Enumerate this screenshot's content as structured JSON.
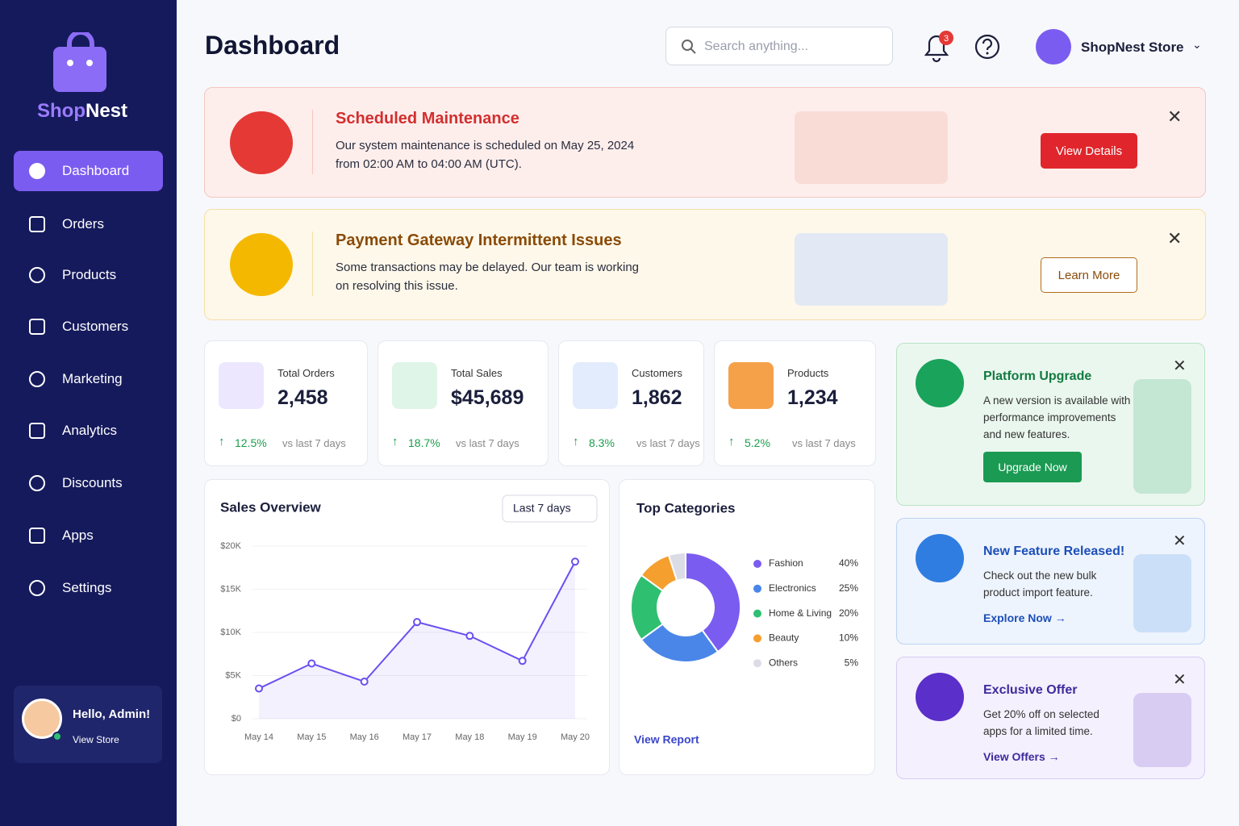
{
  "sidebar": {
    "brand": {
      "first": "Shop",
      "second": "Nest"
    },
    "nav": [
      "Dashboard",
      "Orders",
      "Products",
      "Customers",
      "Marketing",
      "Analytics",
      "Discounts",
      "Apps",
      "Settings"
    ],
    "user": {
      "greeting": "Hello, Admin!",
      "link": "View Store"
    }
  },
  "header": {
    "title": "Dashboard",
    "search_placeholder": "Search anything...",
    "notifications": "3",
    "store": "ShopNest Store"
  },
  "alerts": [
    {
      "title": "Scheduled Maintenance",
      "lines": [
        "Our system maintenance is scheduled on May 25, 2024",
        "from 02:00 AM to 04:00 AM (UTC)."
      ],
      "button": "View Details"
    },
    {
      "title": "Payment Gateway Intermittent Issues",
      "lines": [
        "Some transactions may be delayed. Our team is working",
        "on resolving this issue."
      ],
      "button": "Learn More"
    }
  ],
  "stats": [
    {
      "label": "Total Orders",
      "value": "2,458",
      "change": "12.5%",
      "compare": "vs last 7 days"
    },
    {
      "label": "Total Sales",
      "value": "$45,689",
      "change": "18.7%",
      "compare": "vs last 7 days"
    },
    {
      "label": "Customers",
      "value": "1,862",
      "change": "8.3%",
      "compare": "vs last 7 days"
    },
    {
      "label": "Products",
      "value": "1,234",
      "change": "5.2%",
      "compare": "vs last 7 days"
    }
  ],
  "chart_data": [
    {
      "type": "line",
      "title": "Sales Overview",
      "filter": "Last 7 days",
      "color": "#6a4ff0",
      "categories": [
        "May 14",
        "May 15",
        "May 16",
        "May 17",
        "May 18",
        "May 19",
        "May 20"
      ],
      "values": [
        3500,
        6400,
        4300,
        11200,
        9600,
        6700,
        18200
      ],
      "ylim": [
        0,
        20000
      ],
      "yticks": [
        {
          "value": 0,
          "label": "$0"
        },
        {
          "value": 5000,
          "label": "$5K"
        },
        {
          "value": 10000,
          "label": "$10K"
        },
        {
          "value": 15000,
          "label": "$15K"
        },
        {
          "value": 20000,
          "label": "$20K"
        }
      ]
    },
    {
      "type": "pie",
      "title": "Top Categories",
      "link": "View Report",
      "categories": [
        "Fashion",
        "Electronics",
        "Home & Living",
        "Beauty",
        "Others"
      ],
      "values": [
        40,
        25,
        20,
        10,
        5
      ],
      "value_labels": [
        "40%",
        "25%",
        "20%",
        "10%",
        "5%"
      ],
      "colors": [
        "#7b5cf0",
        "#4a86e8",
        "#2fbf71",
        "#f59f2f",
        "#dcdce6"
      ]
    }
  ],
  "promos": [
    {
      "title": "Platform Upgrade",
      "lines": [
        "A new version is available with",
        "performance improvements",
        "and new features."
      ],
      "button": "Upgrade Now"
    },
    {
      "title": "New Feature Released!",
      "lines": [
        "Check out the new bulk",
        "product import feature."
      ],
      "button": "Explore Now →"
    },
    {
      "title": "Exclusive Offer",
      "lines": [
        "Get 20% off on selected",
        "apps for a limited time."
      ],
      "button": "View Offers →"
    }
  ]
}
